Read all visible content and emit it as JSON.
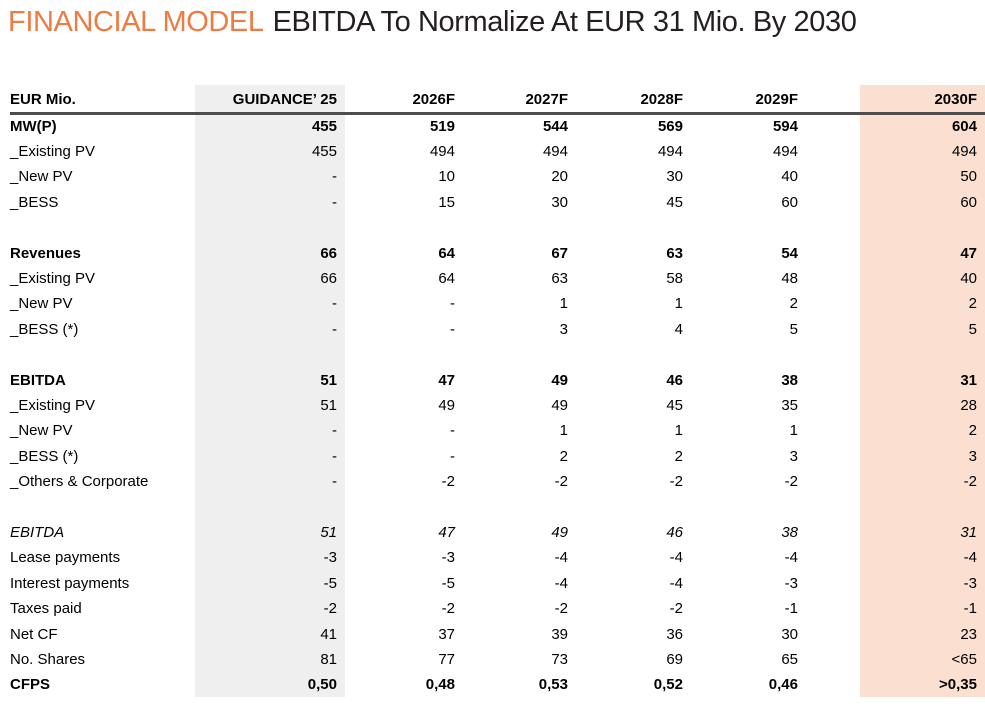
{
  "title": {
    "section_label": "FINANCIAL MODEL",
    "headline": "EBITDA To Normalize At EUR 31 Mio. By 2030"
  },
  "colors": {
    "accent_orange": "#EE7B41",
    "guidance_column_bg": "#F0EFEF",
    "year2030_column_bg": "#FBE0D2",
    "header_rule": "#4D4D4F"
  },
  "table": {
    "unit_label": "EUR Mio.",
    "columns": [
      "GUIDANCE’ 25",
      "2026F",
      "2027F",
      "2028F",
      "2029F",
      "2030F"
    ],
    "rows": [
      {
        "label": "MW(P)",
        "style": "bold",
        "values": [
          "455",
          "519",
          "544",
          "569",
          "594",
          "604"
        ]
      },
      {
        "label": "_Existing PV",
        "style": "normal",
        "values": [
          "455",
          "494",
          "494",
          "494",
          "494",
          "494"
        ]
      },
      {
        "label": "_New PV",
        "style": "normal",
        "values": [
          "-",
          "10",
          "20",
          "30",
          "40",
          "50"
        ]
      },
      {
        "label": "_BESS",
        "style": "normal",
        "values": [
          "-",
          "15",
          "30",
          "45",
          "60",
          "60"
        ]
      },
      {
        "label": "",
        "style": "blank",
        "values": [
          "",
          "",
          "",
          "",
          "",
          ""
        ]
      },
      {
        "label": "Revenues",
        "style": "bold",
        "values": [
          "66",
          "64",
          "67",
          "63",
          "54",
          "47"
        ]
      },
      {
        "label": "_Existing PV",
        "style": "normal",
        "values": [
          "66",
          "64",
          "63",
          "58",
          "48",
          "40"
        ]
      },
      {
        "label": "_New PV",
        "style": "normal",
        "values": [
          "-",
          "-",
          "1",
          "1",
          "2",
          "2"
        ]
      },
      {
        "label": "_BESS (*)",
        "style": "normal",
        "values": [
          "-",
          "-",
          "3",
          "4",
          "5",
          "5"
        ]
      },
      {
        "label": "",
        "style": "blank",
        "values": [
          "",
          "",
          "",
          "",
          "",
          ""
        ]
      },
      {
        "label": "EBITDA",
        "style": "bold",
        "values": [
          "51",
          "47",
          "49",
          "46",
          "38",
          "31"
        ]
      },
      {
        "label": "_Existing PV",
        "style": "normal",
        "values": [
          "51",
          "49",
          "49",
          "45",
          "35",
          "28"
        ]
      },
      {
        "label": "_New PV",
        "style": "normal",
        "values": [
          "-",
          "-",
          "1",
          "1",
          "1",
          "2"
        ]
      },
      {
        "label": "_BESS (*)",
        "style": "normal",
        "values": [
          "-",
          "-",
          "2",
          "2",
          "3",
          "3"
        ]
      },
      {
        "label": "_Others & Corporate",
        "style": "normal",
        "values": [
          "-",
          "-2",
          "-2",
          "-2",
          "-2",
          "-2"
        ]
      },
      {
        "label": "",
        "style": "blank",
        "values": [
          "",
          "",
          "",
          "",
          "",
          ""
        ]
      },
      {
        "label": "EBITDA",
        "style": "italic",
        "values": [
          "51",
          "47",
          "49",
          "46",
          "38",
          "31"
        ]
      },
      {
        "label": "Lease payments",
        "style": "normal",
        "values": [
          "-3",
          "-3",
          "-4",
          "-4",
          "-4",
          "-4"
        ]
      },
      {
        "label": "Interest payments",
        "style": "normal",
        "values": [
          "-5",
          "-5",
          "-4",
          "-4",
          "-3",
          "-3"
        ]
      },
      {
        "label": "Taxes paid",
        "style": "normal",
        "values": [
          "-2",
          "-2",
          "-2",
          "-2",
          "-1",
          "-1"
        ]
      },
      {
        "label": "Net CF",
        "style": "normal",
        "values": [
          "41",
          "37",
          "39",
          "36",
          "30",
          "23"
        ]
      },
      {
        "label": "No. Shares",
        "style": "normal",
        "values": [
          "81",
          "77",
          "73",
          "69",
          "65",
          "<65"
        ]
      },
      {
        "label": "CFPS",
        "style": "bold",
        "values": [
          "0,50",
          "0,48",
          "0,53",
          "0,52",
          "0,46",
          ">0,35"
        ]
      }
    ]
  }
}
